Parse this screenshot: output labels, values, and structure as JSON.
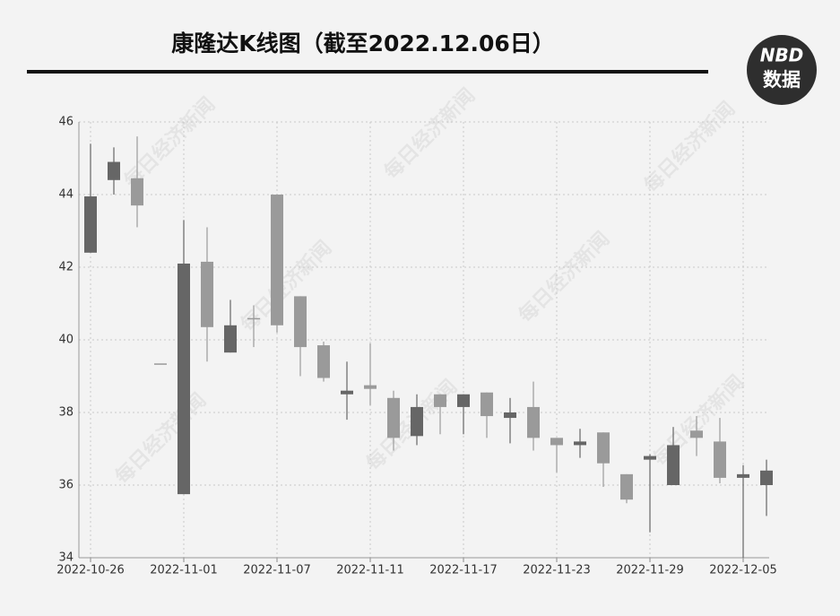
{
  "chart_data": {
    "type": "candlestick",
    "title": "康隆达K线图（截至2022.12.06日）",
    "logo": [
      "NBD",
      "数据"
    ],
    "watermark": "每日经济新闻",
    "categories": [
      "2022-10-26",
      null,
      null,
      null,
      "2022-11-01",
      null,
      null,
      null,
      "2022-11-07",
      null,
      null,
      null,
      "2022-11-11",
      null,
      null,
      null,
      "2022-11-17",
      null,
      null,
      null,
      "2022-11-23",
      null,
      null,
      null,
      "2022-11-29",
      null,
      null,
      null,
      "2022-12-05",
      null
    ],
    "open": [
      43.95,
      44.9,
      43.7,
      39.35,
      42.1,
      40.35,
      40.4,
      40.6,
      40.4,
      39.8,
      38.95,
      38.6,
      38.65,
      37.3,
      38.15,
      38.15,
      38.5,
      37.9,
      38.0,
      37.3,
      37.1,
      37.2,
      36.6,
      35.6,
      36.8,
      37.1,
      37.3,
      36.2,
      36.3,
      36.4
    ],
    "high": [
      45.4,
      45.3,
      45.6,
      39.35,
      43.3,
      43.1,
      41.1,
      40.95,
      44.0,
      41.2,
      39.95,
      39.4,
      39.9,
      38.6,
      38.5,
      38.5,
      38.5,
      38.55,
      38.4,
      38.85,
      37.3,
      37.55,
      37.45,
      36.3,
      36.85,
      37.6,
      37.9,
      37.85,
      36.55,
      36.7
    ],
    "low": [
      42.4,
      44.0,
      43.1,
      39.35,
      35.75,
      39.4,
      39.65,
      39.8,
      40.2,
      39.0,
      38.85,
      37.8,
      38.2,
      36.95,
      37.1,
      37.4,
      37.4,
      37.3,
      37.15,
      36.95,
      36.35,
      36.75,
      35.95,
      35.5,
      34.7,
      36.0,
      36.8,
      36.05,
      34.0,
      35.15
    ],
    "close": [
      42.4,
      44.4,
      44.45,
      39.35,
      35.75,
      42.15,
      39.65,
      40.6,
      44.0,
      41.2,
      39.85,
      38.5,
      38.75,
      38.4,
      37.35,
      38.5,
      38.15,
      38.55,
      37.85,
      38.15,
      37.3,
      37.1,
      37.45,
      36.3,
      36.7,
      36.0,
      37.5,
      37.2,
      36.2,
      36.0
    ],
    "up_color": "#9a9a9a",
    "down_color": "#666666",
    "ylim": [
      34,
      46
    ],
    "yticks": [
      34,
      36,
      38,
      40,
      42,
      44,
      46
    ],
    "grid": true
  }
}
